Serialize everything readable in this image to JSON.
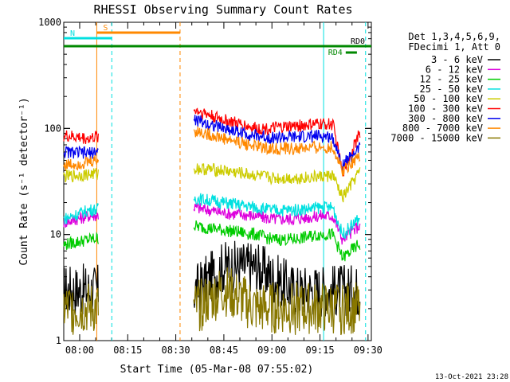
{
  "chart_data": {
    "type": "line",
    "title": "RHESSI Observing Summary Count Rates",
    "xlabel": "Start Time (05-Mar-08 07:55:02)",
    "ylabel": "Count Rate (s⁻¹ detector⁻¹)",
    "yscale": "log",
    "ylim": [
      1,
      1000
    ],
    "xlim_minutes": [
      0,
      96
    ],
    "x_ticks": [
      "08:00",
      "08:15",
      "08:30",
      "08:45",
      "09:00",
      "09:15",
      "09:30"
    ],
    "y_ticks": [
      "1",
      "10",
      "100",
      "1000"
    ],
    "legend_header": [
      "Det 1,3,4,5,6,9,",
      "FDecimi 1, Att 0"
    ],
    "timestamp": "13-Oct-2021 23:28",
    "segments_minutes": [
      [
        0,
        10.8
      ],
      [
        40.6,
        92.6
      ]
    ],
    "series": [
      {
        "name": "3 - 6 keV",
        "color": "#000000",
        "values": [
          3,
          3,
          3,
          5,
          5,
          4,
          3,
          3,
          3,
          3,
          3
        ]
      },
      {
        "name": "6 - 12 keV",
        "color": "#dd00dd",
        "values": [
          13,
          15,
          18,
          16,
          15,
          14,
          14,
          15,
          15,
          9,
          12
        ]
      },
      {
        "name": "12 - 25 keV",
        "color": "#00cc00",
        "values": [
          8,
          9,
          12,
          11,
          10,
          9,
          9,
          10,
          10,
          6,
          8
        ]
      },
      {
        "name": "25 - 50 keV",
        "color": "#00e0e0",
        "values": [
          14,
          17,
          22,
          20,
          18,
          17,
          17,
          18,
          18,
          10,
          14
        ]
      },
      {
        "name": "50 - 100 keV",
        "color": "#cccc00",
        "values": [
          35,
          37,
          42,
          40,
          36,
          34,
          34,
          35,
          36,
          22,
          38
        ]
      },
      {
        "name": "100 - 300 keV",
        "color": "#ff0000",
        "values": [
          85,
          80,
          150,
          120,
          100,
          100,
          105,
          110,
          110,
          38,
          85
        ]
      },
      {
        "name": "300 - 800 keV",
        "color": "#0000ee",
        "values": [
          60,
          58,
          120,
          100,
          85,
          82,
          82,
          85,
          82,
          45,
          65
        ]
      },
      {
        "name": "800 - 7000 keV",
        "color": "#ff8800",
        "values": [
          45,
          48,
          95,
          80,
          68,
          64,
          64,
          66,
          66,
          40,
          55
        ]
      },
      {
        "name": "7000 - 15000 keV",
        "color": "#887700",
        "values": [
          2,
          2,
          2,
          3,
          2,
          2,
          2,
          2,
          2,
          2,
          2
        ]
      }
    ],
    "series_time_minutes": [
      0,
      8,
      41,
      50,
      60,
      65,
      72,
      80,
      84,
      87,
      92
    ],
    "flags": [
      {
        "label": "S",
        "color": "#ff8800",
        "start_min": 10.3,
        "end_min": 36.3
      },
      {
        "label": "N",
        "color": "#00e0e0",
        "start_min": 0,
        "end_min": 15.0
      },
      {
        "label": "RD0",
        "color": "#00e0e0",
        "start_min": 81.1,
        "end_min": 96
      },
      {
        "label": "RD4",
        "color": "#008800",
        "start_min": 88.0,
        "end_min": 91.5
      }
    ],
    "markers": [
      {
        "color": "#ff8800",
        "style": "solid",
        "min": 10.3
      },
      {
        "color": "#00e0e0",
        "style": "dashed",
        "min": 15.0
      },
      {
        "color": "#ff8800",
        "style": "dashed",
        "min": 36.3
      },
      {
        "color": "#00e0e0",
        "style": "solid",
        "min": 81.1
      },
      {
        "color": "#00e0e0",
        "style": "dashed",
        "min": 94.2
      }
    ],
    "grid": false,
    "legend_position": "right"
  }
}
